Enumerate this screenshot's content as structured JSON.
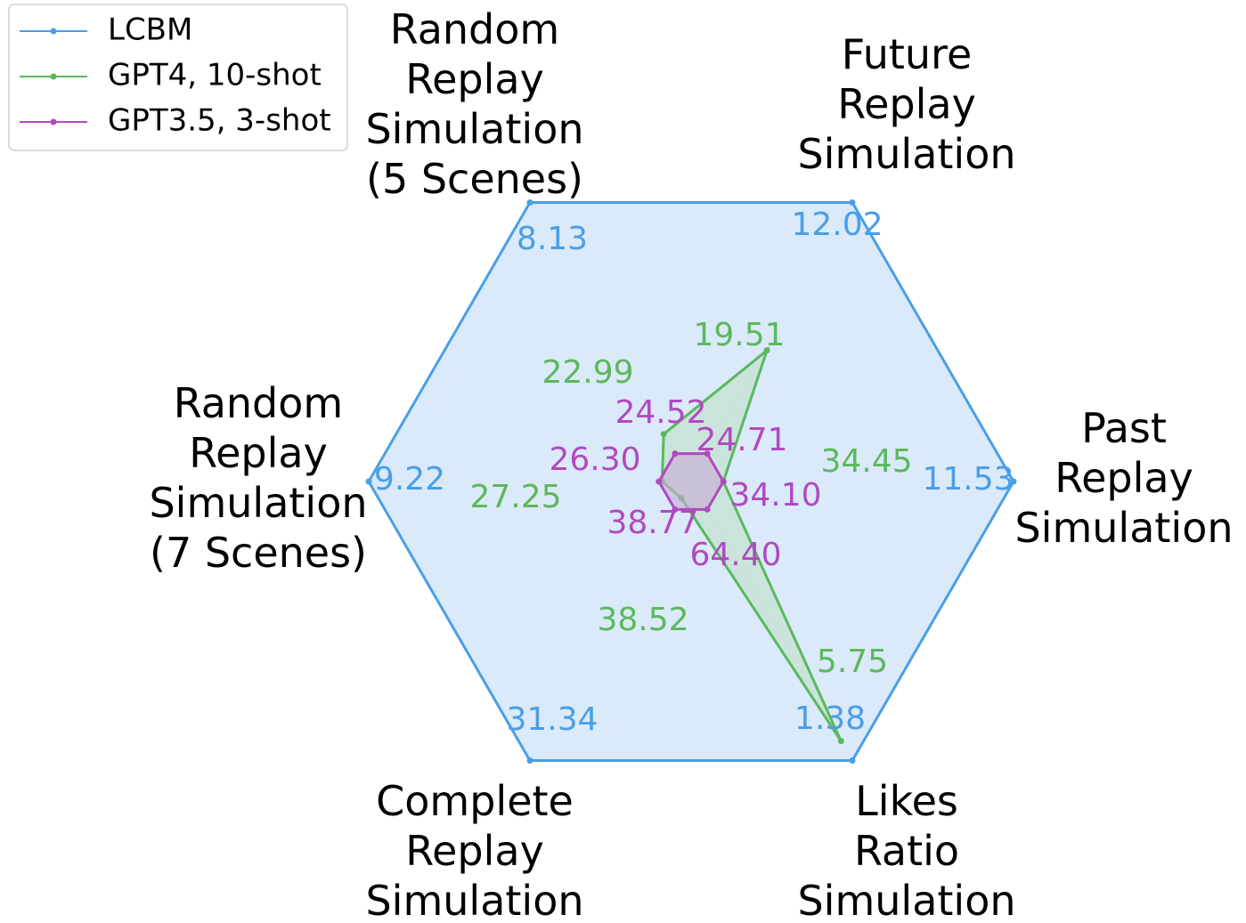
{
  "chart_data": {
    "type": "radar",
    "axes": [
      {
        "key": "past",
        "label": [
          "Past",
          "Replay",
          "Simulation"
        ]
      },
      {
        "key": "future",
        "label": [
          "Future",
          "Replay",
          "Simulation"
        ]
      },
      {
        "key": "random5",
        "label": [
          "Random",
          "Replay",
          "Simulation",
          "(5 Scenes)"
        ]
      },
      {
        "key": "random7",
        "label": [
          "Random",
          "Replay",
          "Simulation",
          "(7 Scenes)"
        ]
      },
      {
        "key": "complete",
        "label": [
          "Complete",
          "Replay",
          "Simulation"
        ]
      },
      {
        "key": "likes",
        "label": [
          "Likes",
          "Ratio",
          "Simulation"
        ]
      }
    ],
    "series": [
      {
        "name": "LCBM",
        "color": "#4a9ee6",
        "fill": "#d6e8f9",
        "values": [
          11.53,
          12.02,
          8.13,
          9.22,
          31.34,
          1.38
        ],
        "labels": [
          "11.53",
          "12.02",
          "8.13",
          "9.22",
          "31.34",
          "1.38"
        ],
        "relative": [
          1.0,
          1.0,
          1.0,
          1.0,
          1.0,
          1.0
        ]
      },
      {
        "name": "GPT4, 10-shot",
        "color": "#5cb85c",
        "fill": "#bfe0c8",
        "values": [
          34.45,
          19.51,
          22.99,
          27.25,
          38.52,
          5.75
        ],
        "labels": [
          "34.45",
          "19.51",
          "22.99",
          "27.25",
          "38.52",
          "5.75"
        ],
        "relative": [
          0.1,
          0.47,
          0.17,
          0.09,
          0.06,
          0.93
        ]
      },
      {
        "name": "GPT3.5, 3-shot",
        "color": "#b04ac0",
        "fill": "#c9a8d4",
        "values": [
          24.71,
          34.1,
          24.52,
          26.3,
          38.77,
          64.4
        ],
        "labels": [
          "24.71",
          "34.10",
          "24.52",
          "26.30",
          "38.77",
          "64.40"
        ],
        "relative": [
          0.1,
          0.1,
          0.1,
          0.1,
          0.1,
          0.1
        ]
      }
    ],
    "legend_placement": "top-left",
    "grid": true
  }
}
